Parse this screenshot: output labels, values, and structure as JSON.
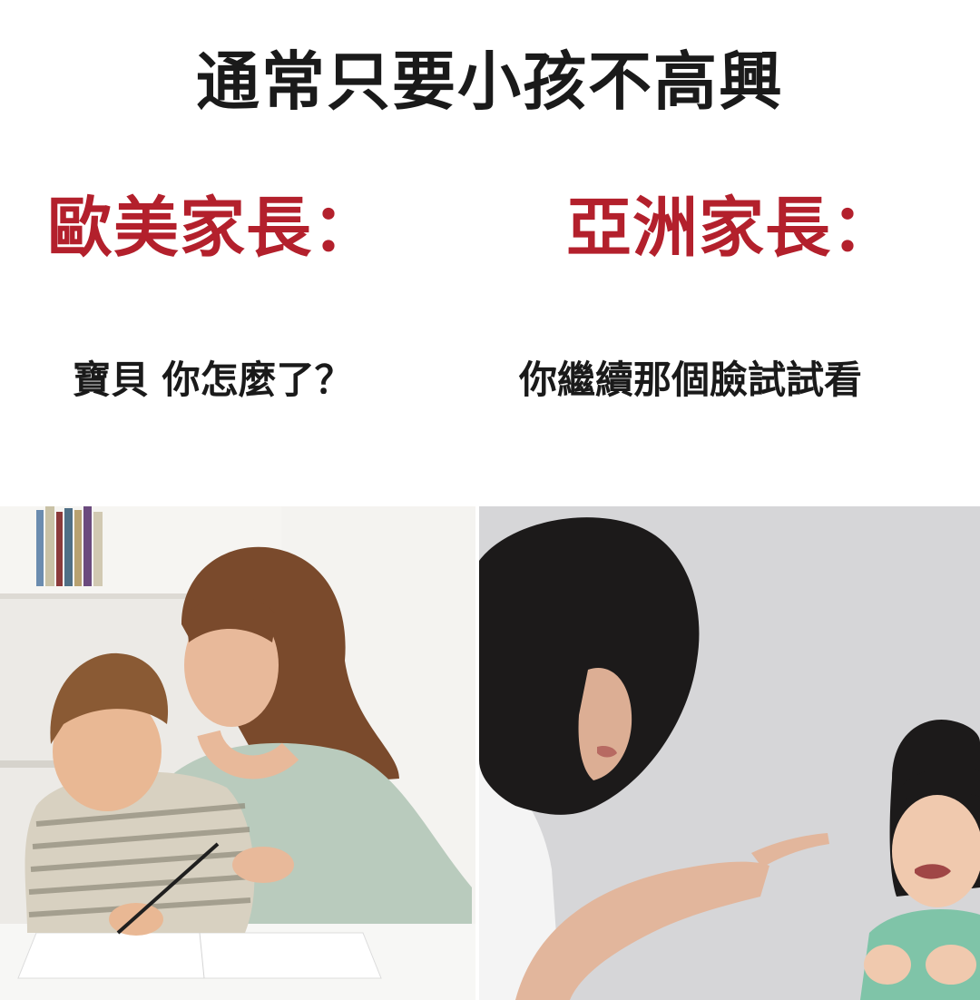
{
  "title": "通常只要小孩不高興",
  "western": {
    "heading": "歐美家長：",
    "caption": "寶貝 你怎麼了？"
  },
  "asian": {
    "heading": "亞洲家長：",
    "caption": "你繼續那個臉試試看"
  }
}
